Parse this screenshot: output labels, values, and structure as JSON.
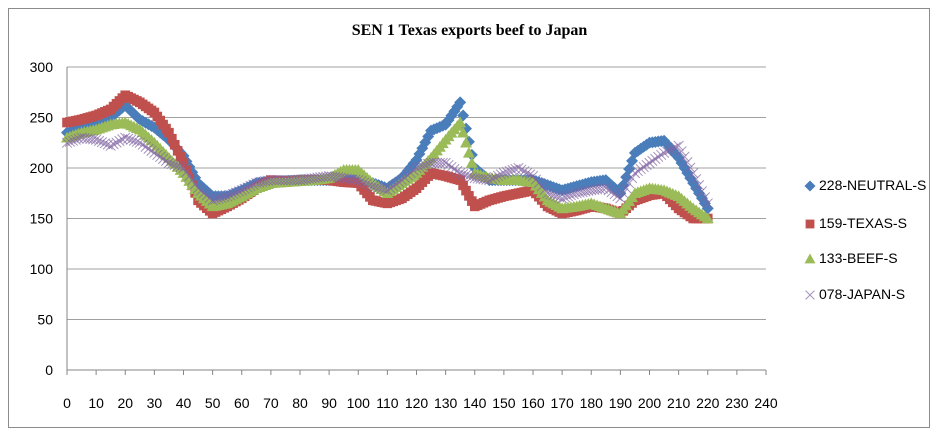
{
  "chart_data": {
    "type": "scatter",
    "title": "SEN 1 Texas exports beef to Japan",
    "xlabel": "",
    "ylabel": "",
    "xlim": [
      0,
      240
    ],
    "ylim": [
      0,
      300
    ],
    "xticks": [
      0,
      10,
      20,
      30,
      40,
      50,
      60,
      70,
      80,
      90,
      100,
      110,
      120,
      130,
      140,
      150,
      160,
      170,
      180,
      190,
      200,
      210,
      220,
      230,
      240
    ],
    "yticks": [
      0,
      50,
      100,
      150,
      200,
      250,
      300
    ],
    "grid": "horizontal",
    "legend_position": "right",
    "x": [
      0,
      5,
      10,
      15,
      20,
      25,
      30,
      35,
      40,
      45,
      50,
      55,
      60,
      65,
      70,
      75,
      80,
      85,
      90,
      95,
      100,
      105,
      110,
      115,
      120,
      125,
      130,
      135,
      140,
      145,
      150,
      155,
      160,
      165,
      170,
      175,
      180,
      185,
      190,
      195,
      200,
      205,
      210,
      215,
      220
    ],
    "series": [
      {
        "name": "228-NEUTRAL-S",
        "marker": "diamond",
        "color": "#4a7ebb",
        "values": [
          235,
          238,
          242,
          250,
          262,
          248,
          240,
          228,
          212,
          185,
          172,
          172,
          178,
          185,
          187,
          187,
          188,
          188,
          188,
          188,
          188,
          185,
          180,
          190,
          208,
          237,
          243,
          265,
          200,
          188,
          188,
          188,
          188,
          183,
          178,
          182,
          186,
          188,
          175,
          215,
          225,
          227,
          210,
          185,
          160
        ]
      },
      {
        "name": "159-TEXAS-S",
        "marker": "square",
        "color": "#c0504d",
        "values": [
          245,
          248,
          252,
          258,
          272,
          265,
          255,
          235,
          205,
          168,
          155,
          162,
          170,
          180,
          188,
          187,
          188,
          188,
          188,
          186,
          185,
          168,
          165,
          170,
          180,
          195,
          192,
          188,
          162,
          168,
          172,
          175,
          178,
          162,
          155,
          158,
          162,
          160,
          155,
          168,
          173,
          175,
          160,
          150,
          150
        ]
      },
      {
        "name": "133-BEEF-S",
        "marker": "triangle",
        "color": "#9bbb59",
        "values": [
          230,
          235,
          238,
          243,
          245,
          238,
          225,
          210,
          195,
          175,
          162,
          165,
          172,
          180,
          185,
          186,
          187,
          188,
          190,
          198,
          198,
          185,
          175,
          185,
          195,
          210,
          228,
          245,
          195,
          190,
          188,
          188,
          186,
          168,
          160,
          162,
          165,
          160,
          155,
          175,
          180,
          178,
          172,
          160,
          150
        ]
      },
      {
        "name": "078-JAPAN-S",
        "marker": "x",
        "color": "#8064a2",
        "values": [
          225,
          230,
          228,
          222,
          230,
          225,
          215,
          205,
          200,
          180,
          168,
          172,
          178,
          185,
          188,
          188,
          188,
          190,
          192,
          190,
          188,
          182,
          178,
          188,
          200,
          205,
          205,
          195,
          190,
          188,
          195,
          200,
          192,
          175,
          170,
          175,
          178,
          180,
          170,
          195,
          205,
          215,
          222,
          195,
          165
        ]
      }
    ]
  }
}
